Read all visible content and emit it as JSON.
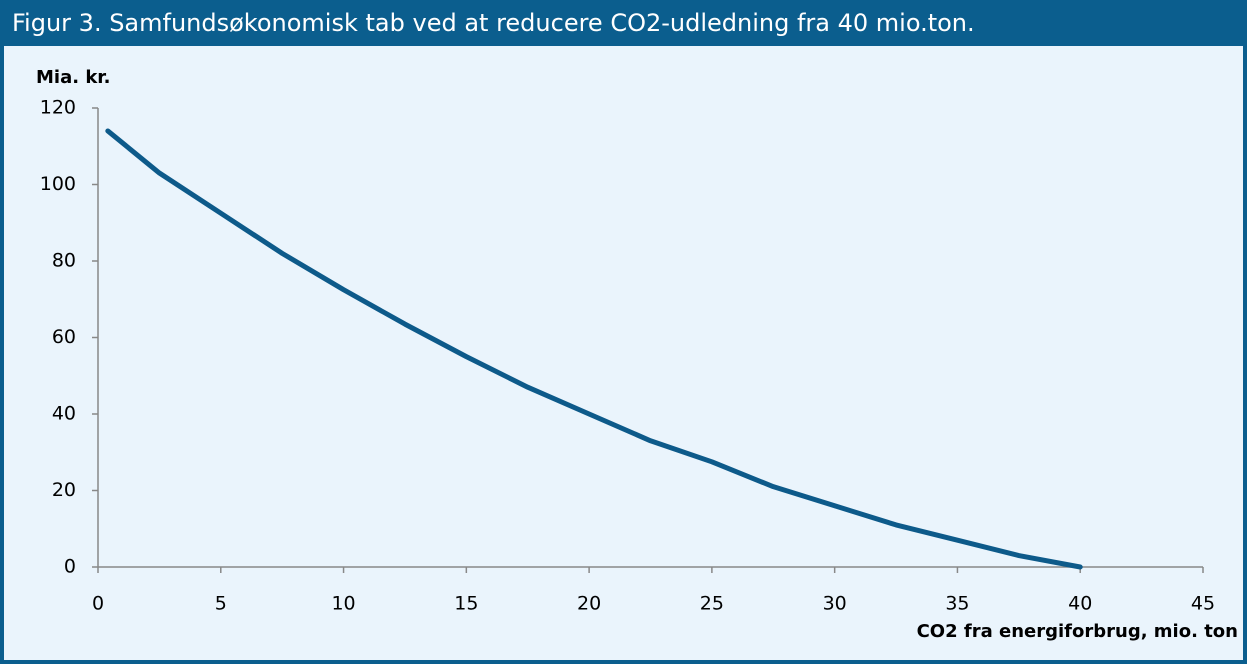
{
  "chart_data": {
    "type": "line",
    "title": "Figur 3. Samfundsøkonomisk tab ved at reducere CO2-udledning fra 40 mio.ton.",
    "ylabel": "Mia. kr.",
    "xlabel": "CO2 fra energiforbrug, mio. ton",
    "x": [
      0.4,
      2.5,
      5,
      7.5,
      10,
      12.5,
      15,
      17.5,
      20,
      22.5,
      25,
      27.5,
      30,
      32.5,
      35,
      37.5,
      40
    ],
    "series": [
      {
        "name": "Samfundsøkonomisk tab",
        "color": "#0d5a8a",
        "values": [
          114,
          103,
          92.5,
          82,
          72.5,
          63.5,
          55,
          47,
          40,
          33,
          27.5,
          21,
          16,
          11,
          7,
          3,
          0
        ]
      }
    ],
    "xlim": [
      0,
      45
    ],
    "xticks": [
      0,
      5,
      10,
      15,
      20,
      25,
      30,
      35,
      40,
      45
    ],
    "ylim": [
      0,
      120
    ],
    "yticks": [
      0,
      20,
      40,
      60,
      80,
      100,
      120
    ],
    "grid": false,
    "legend": false
  }
}
